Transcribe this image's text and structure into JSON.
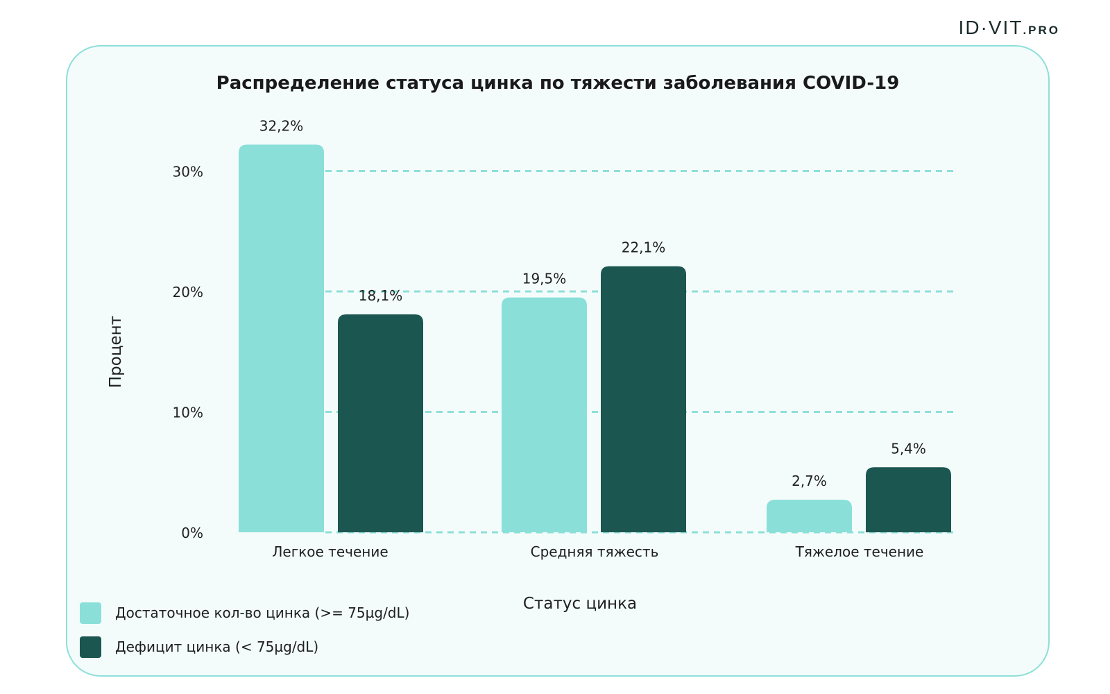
{
  "brand": {
    "main": "ID·VIT",
    "suffix": ".PRO"
  },
  "chart_data": {
    "type": "bar",
    "title": "Распределение статуса цинка по тяжести заболевания COVID-19",
    "xlabel": "Статус цинка",
    "ylabel": "Процент",
    "categories": [
      "Легкое течение",
      "Средняя тяжесть",
      "Тяжелое течение"
    ],
    "series": [
      {
        "name": "Достаточное кол-во цинка (>= 75µg/dL)",
        "color": "#8adfd9",
        "values": [
          32.2,
          19.5,
          2.7
        ],
        "labels": [
          "32,2%",
          "19,5%",
          "2,7%"
        ]
      },
      {
        "name": "Дефицит цинка (< 75µg/dL)",
        "color": "#1b5651",
        "values": [
          18.1,
          22.1,
          5.4
        ],
        "labels": [
          "18,1%",
          "22,1%",
          "5,4%"
        ]
      }
    ],
    "yticks": [
      0,
      10,
      20,
      30
    ],
    "ytick_labels": [
      "0%",
      "10%",
      "20%",
      "30%"
    ],
    "ylim": [
      0,
      33
    ],
    "grid": true,
    "legend_position": "bottom-left"
  }
}
